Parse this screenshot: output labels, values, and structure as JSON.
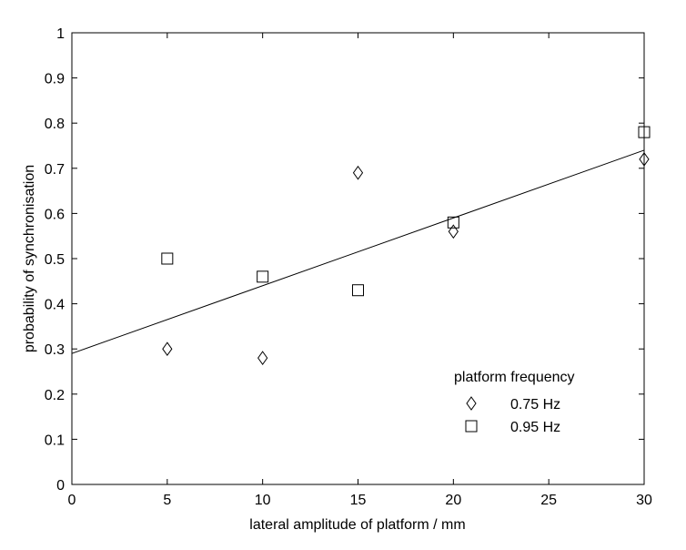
{
  "chart_data": {
    "type": "scatter",
    "xlabel": "lateral amplitude of platform / mm",
    "ylabel": "probability of synchronisation",
    "xlim": [
      0,
      30
    ],
    "ylim": [
      0,
      1
    ],
    "xticks": [
      0,
      5,
      10,
      15,
      20,
      25,
      30
    ],
    "yticks": [
      0,
      0.1,
      0.2,
      0.3,
      0.4,
      0.5,
      0.6,
      0.7,
      0.8,
      0.9,
      1
    ],
    "ytick_labels": [
      "0",
      "0.1",
      "0.2",
      "0.3",
      "0.4",
      "0.5",
      "0.6",
      "0.7",
      "0.8",
      "0.9",
      "1"
    ],
    "grid": false,
    "legend": {
      "title": "platform frequency",
      "placement": "lower-right"
    },
    "series": [
      {
        "name": "0.75 Hz",
        "marker": "diamond",
        "color": "#000000",
        "x": [
          5,
          10,
          15,
          20,
          30
        ],
        "y": [
          0.3,
          0.28,
          0.69,
          0.56,
          0.72
        ]
      },
      {
        "name": "0.95 Hz",
        "marker": "square",
        "color": "#000000",
        "x": [
          5,
          10,
          15,
          20,
          30
        ],
        "y": [
          0.5,
          0.46,
          0.43,
          0.58,
          0.78
        ]
      }
    ],
    "fit_line": {
      "type": "linear",
      "x": [
        0,
        30
      ],
      "y": [
        0.29,
        0.74
      ]
    }
  }
}
